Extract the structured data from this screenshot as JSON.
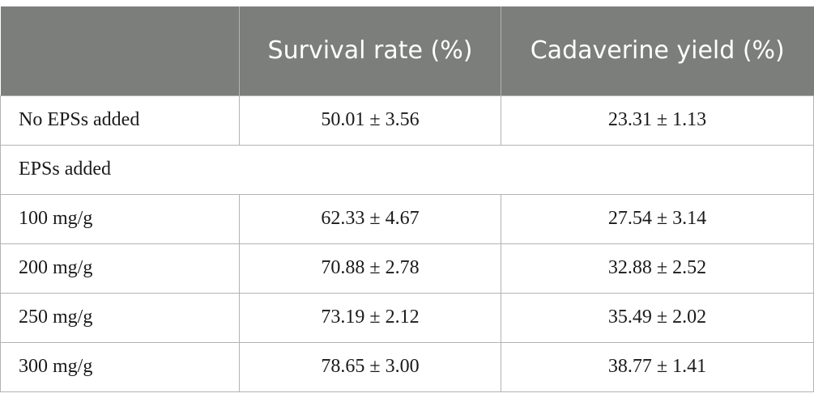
{
  "table": {
    "headers": [
      "",
      "Survival rate (%)",
      "Cadaverine yield (%)"
    ],
    "rows": [
      {
        "label": "No EPSs added",
        "survival": "50.01 ± 3.56",
        "yield": "23.31 ± 1.13"
      },
      {
        "label": "EPSs added",
        "section": true
      },
      {
        "label": "100 mg/g",
        "survival": "62.33 ± 4.67",
        "yield": "27.54 ± 3.14"
      },
      {
        "label": "200 mg/g",
        "survival": "70.88 ± 2.78",
        "yield": "32.88 ± 2.52"
      },
      {
        "label": "250 mg/g",
        "survival": "73.19 ± 2.12",
        "yield": "35.49 ± 2.02"
      },
      {
        "label": "300 mg/g",
        "survival": "78.65 ± 3.00",
        "yield": "38.77 ± 1.41"
      }
    ]
  },
  "colors": {
    "header_bg": "#7b7e7b",
    "header_text": "#ffffff",
    "rule": "#b3b3b3",
    "body_text": "#1a1a1a"
  }
}
